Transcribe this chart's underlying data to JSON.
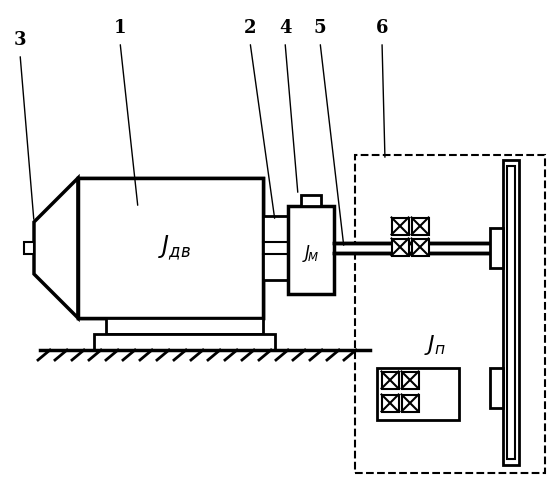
{
  "fig_width": 5.58,
  "fig_height": 5.0,
  "dpi": 100,
  "bg_color": "#ffffff",
  "line_color": "#000000"
}
